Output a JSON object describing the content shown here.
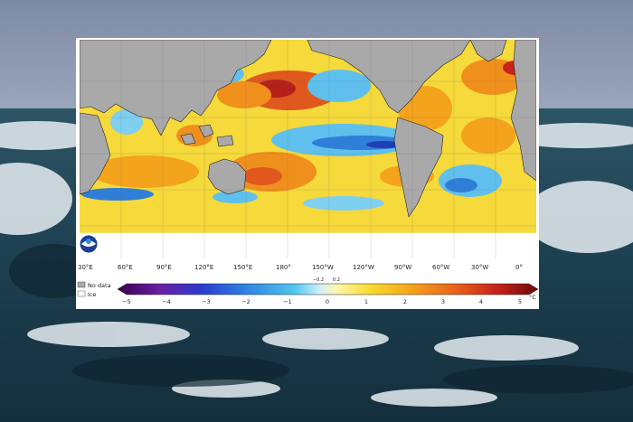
{
  "map": {
    "lon_labels": [
      "30°E",
      "60°E",
      "90°E",
      "120°E",
      "150°E",
      "180°",
      "150°W",
      "120°W",
      "90°W",
      "60°W",
      "30°W",
      "0°"
    ],
    "legend": {
      "no_data": "No data",
      "ice": "Ice"
    },
    "colorbar": {
      "ticks": [
        "−5",
        "−4",
        "−3",
        "−2",
        "−1",
        "0",
        "1",
        "2",
        "3",
        "4",
        "5"
      ],
      "minor_ticks": [
        "−0.2",
        "0.2"
      ],
      "unit": "°C",
      "range": [
        -5,
        5
      ]
    },
    "colors": {
      "land": "#a9a9a9",
      "warm": "#d9401e",
      "cool": "#2f7fd9",
      "neutral": "#f7e24a"
    }
  }
}
